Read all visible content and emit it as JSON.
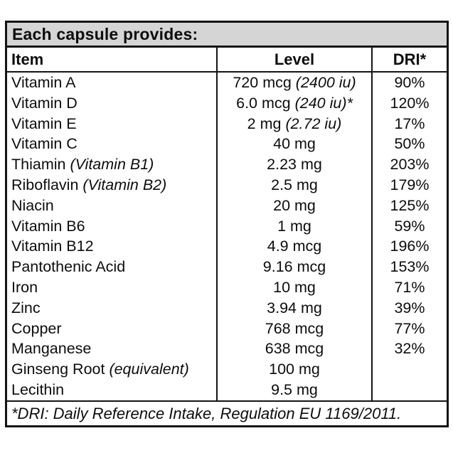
{
  "colors": {
    "title_bg": "#d5d5d5",
    "border": "#141414",
    "text": "#0d0d0d",
    "page_bg": "#ffffff"
  },
  "table": {
    "title": "Each capsule provides:",
    "columns": {
      "item": "Item",
      "level": "Level",
      "dri": "DRI*"
    },
    "rows": [
      {
        "item": "Vitamin A",
        "item_note": "",
        "level": "720 mcg",
        "level_note": "(2400 iu)",
        "dri": "90%"
      },
      {
        "item": "Vitamin D",
        "item_note": "",
        "level": "6.0 mcg",
        "level_note": "(240 iu)*",
        "dri": "120%"
      },
      {
        "item": "Vitamin E",
        "item_note": "",
        "level": "2 mg",
        "level_note": "(2.72 iu)",
        "dri": "17%"
      },
      {
        "item": "Vitamin C",
        "item_note": "",
        "level": "40 mg",
        "level_note": "",
        "dri": "50%"
      },
      {
        "item": "Thiamin",
        "item_note": "(Vitamin B1)",
        "level": "2.23 mg",
        "level_note": "",
        "dri": "203%"
      },
      {
        "item": "Riboflavin",
        "item_note": "(Vitamin B2)",
        "level": "2.5 mg",
        "level_note": "",
        "dri": "179%"
      },
      {
        "item": "Niacin",
        "item_note": "",
        "level": "20 mg",
        "level_note": "",
        "dri": "125%"
      },
      {
        "item": "Vitamin B6",
        "item_note": "",
        "level": "1 mg",
        "level_note": "",
        "dri": "59%"
      },
      {
        "item": "Vitamin B12",
        "item_note": "",
        "level": "4.9 mcg",
        "level_note": "",
        "dri": "196%"
      },
      {
        "item": "Pantothenic Acid",
        "item_note": "",
        "level": "9.16 mcg",
        "level_note": "",
        "dri": "153%"
      },
      {
        "item": "Iron",
        "item_note": "",
        "level": "10 mg",
        "level_note": "",
        "dri": "71%"
      },
      {
        "item": "Zinc",
        "item_note": "",
        "level": "3.94 mg",
        "level_note": "",
        "dri": "39%"
      },
      {
        "item": "Copper",
        "item_note": "",
        "level": "768 mcg",
        "level_note": "",
        "dri": "77%"
      },
      {
        "item": "Manganese",
        "item_note": "",
        "level": "638 mcg",
        "level_note": "",
        "dri": "32%"
      },
      {
        "item": "Ginseng Root",
        "item_note": "(equivalent)",
        "level": "100 mg",
        "level_note": "",
        "dri": ""
      },
      {
        "item": "Lecithin",
        "item_note": "",
        "level": "9.5 mg",
        "level_note": "",
        "dri": ""
      }
    ],
    "footnote": "*DRI: Daily Reference Intake, Regulation EU 1169/2011."
  },
  "chart_data": {
    "type": "table",
    "title": "Each capsule provides:",
    "columns": [
      "Item",
      "Level",
      "DRI*"
    ],
    "rows": [
      [
        "Vitamin A",
        "720 mcg (2400 iu)",
        "90%"
      ],
      [
        "Vitamin D",
        "6.0 mcg (240 iu)*",
        "120%"
      ],
      [
        "Vitamin E",
        "2 mg (2.72 iu)",
        "17%"
      ],
      [
        "Vitamin C",
        "40 mg",
        "50%"
      ],
      [
        "Thiamin (Vitamin B1)",
        "2.23 mg",
        "203%"
      ],
      [
        "Riboflavin (Vitamin B2)",
        "2.5 mg",
        "179%"
      ],
      [
        "Niacin",
        "20 mg",
        "125%"
      ],
      [
        "Vitamin B6",
        "1 mg",
        "59%"
      ],
      [
        "Vitamin B12",
        "4.9 mcg",
        "196%"
      ],
      [
        "Pantothenic Acid",
        "9.16 mcg",
        "153%"
      ],
      [
        "Iron",
        "10 mg",
        "71%"
      ],
      [
        "Zinc",
        "3.94 mg",
        "39%"
      ],
      [
        "Copper",
        "768 mcg",
        "77%"
      ],
      [
        "Manganese",
        "638 mcg",
        "32%"
      ],
      [
        "Ginseng Root (equivalent)",
        "100 mg",
        ""
      ],
      [
        "Lecithin",
        "9.5 mg",
        ""
      ]
    ],
    "footnote": "*DRI: Daily Reference Intake, Regulation EU 1169/2011."
  }
}
